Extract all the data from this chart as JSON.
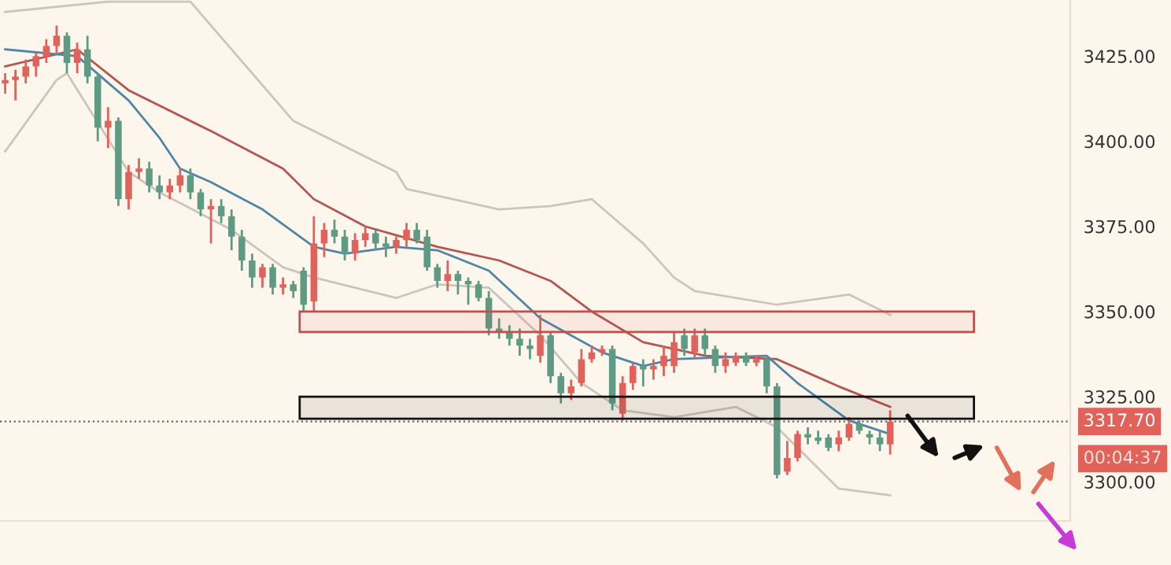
{
  "chart_data": {
    "type": "candlestick",
    "categories": [
      null,
      null,
      null,
      null,
      null,
      null,
      null,
      null,
      null,
      null,
      null,
      null,
      null,
      null,
      null,
      null,
      null,
      null,
      null,
      null,
      null,
      null,
      null,
      null,
      null,
      null,
      null,
      null,
      null,
      null,
      null,
      null,
      null,
      null,
      null,
      null,
      null,
      null,
      null,
      null,
      null,
      null,
      null,
      null,
      null,
      null,
      null,
      null,
      null,
      null,
      null,
      null,
      null,
      null,
      null,
      null,
      null,
      null,
      null,
      null,
      null,
      null,
      null,
      null,
      null,
      null,
      null,
      null,
      null,
      null,
      null,
      null,
      null,
      null,
      null,
      null,
      null,
      null,
      null,
      null,
      null,
      null,
      null,
      null,
      null,
      null,
      null,
      null,
      null,
      null,
      null,
      null,
      null,
      null,
      null,
      null,
      null,
      null,
      null,
      null,
      null,
      null,
      null,
      null
    ],
    "ohlc": [
      [
        3417,
        3420,
        3414,
        3418
      ],
      [
        3418,
        3421,
        3412,
        3419
      ],
      [
        3419,
        3424,
        3417,
        3422
      ],
      [
        3422,
        3426,
        3419,
        3425
      ],
      [
        3425,
        3430,
        3423,
        3428
      ],
      [
        3428,
        3434,
        3426,
        3431
      ],
      [
        3431,
        3432,
        3420,
        3423
      ],
      [
        3423,
        3429,
        3420,
        3427
      ],
      [
        3427,
        3431,
        3417,
        3419
      ],
      [
        3419,
        3420,
        3400,
        3404
      ],
      [
        3404,
        3410,
        3398,
        3406
      ],
      [
        3406,
        3407,
        3381,
        3383
      ],
      [
        3383,
        3393,
        3380,
        3391
      ],
      [
        3391,
        3395,
        3389,
        3392
      ],
      [
        3392,
        3394,
        3385,
        3387
      ],
      [
        3387,
        3390,
        3383,
        3385
      ],
      [
        3385,
        3389,
        3383,
        3387
      ],
      [
        3387,
        3392,
        3385,
        3390
      ],
      [
        3390,
        3392,
        3383,
        3385
      ],
      [
        3385,
        3386,
        3378,
        3380
      ],
      [
        3380,
        3383,
        3370,
        3381
      ],
      [
        3381,
        3383,
        3376,
        3378
      ],
      [
        3378,
        3380,
        3368,
        3372
      ],
      [
        3372,
        3374,
        3362,
        3365
      ],
      [
        3365,
        3367,
        3357,
        3360
      ],
      [
        3360,
        3364,
        3357,
        3363
      ],
      [
        3363,
        3364,
        3355,
        3357
      ],
      [
        3357,
        3360,
        3355,
        3358
      ],
      [
        3358,
        3359,
        3354,
        3356
      ],
      [
        3362,
        3363,
        3350,
        3352
      ],
      [
        3353,
        3378,
        3350,
        3370
      ],
      [
        3370,
        3376,
        3366,
        3374
      ],
      [
        3374,
        3377,
        3370,
        3372
      ],
      [
        3372,
        3374,
        3365,
        3367
      ],
      [
        3367,
        3373,
        3365,
        3371
      ],
      [
        3371,
        3375,
        3369,
        3373
      ],
      [
        3373,
        3374,
        3368,
        3370
      ],
      [
        3370,
        3372,
        3366,
        3369
      ],
      [
        3369,
        3372,
        3367,
        3371
      ],
      [
        3371,
        3376,
        3369,
        3374
      ],
      [
        3374,
        3376,
        3370,
        3371
      ],
      [
        3372,
        3374,
        3362,
        3363
      ],
      [
        3363,
        3364,
        3357,
        3359
      ],
      [
        3359,
        3365,
        3356,
        3361
      ],
      [
        3361,
        3362,
        3355,
        3359
      ],
      [
        3359,
        3360,
        3352,
        3358
      ],
      [
        3358,
        3359,
        3353,
        3354
      ],
      [
        3354,
        3356,
        3343,
        3345
      ],
      [
        3345,
        3348,
        3342,
        3344
      ],
      [
        3344,
        3346,
        3340,
        3342
      ],
      [
        3342,
        3345,
        3337,
        3340
      ],
      [
        3340,
        3342,
        3336,
        3339
      ],
      [
        3337,
        3349,
        3335,
        3343
      ],
      [
        3343,
        3344,
        3329,
        3331
      ],
      [
        3331,
        3332,
        3323,
        3326
      ],
      [
        3326,
        3330,
        3324,
        3328
      ],
      [
        3329,
        3339,
        3328,
        3336
      ],
      [
        3336,
        3340,
        3335,
        3338
      ],
      [
        3338,
        3340,
        3337,
        3339
      ],
      [
        3339,
        3340,
        3321,
        3323
      ],
      [
        3320,
        3331,
        3318,
        3329
      ],
      [
        3329,
        3335,
        3327,
        3334
      ],
      [
        3334,
        3336,
        3328,
        3333
      ],
      [
        3333,
        3336,
        3330,
        3334
      ],
      [
        3334,
        3340,
        3331,
        3337
      ],
      [
        3334,
        3344,
        3332,
        3341
      ],
      [
        3343,
        3345,
        3337,
        3339
      ],
      [
        3338,
        3345,
        3336,
        3343
      ],
      [
        3343,
        3345,
        3337,
        3339
      ],
      [
        3339,
        3340,
        3332,
        3334
      ],
      [
        3334,
        3338,
        3332,
        3336
      ],
      [
        3335,
        3338,
        3334,
        3337
      ],
      [
        3337,
        3338,
        3334,
        3335
      ],
      [
        3335,
        3337,
        3334,
        3336
      ],
      [
        3336,
        3337,
        3326,
        3328
      ],
      [
        3328,
        3329,
        3301,
        3302
      ],
      [
        3303,
        3312,
        3302,
        3307
      ],
      [
        3307,
        3315,
        3306,
        3314
      ],
      [
        3314,
        3316,
        3311,
        3313
      ],
      [
        3313,
        3315,
        3311,
        3312
      ],
      [
        3313,
        3314,
        3309,
        3310
      ],
      [
        3311,
        3315,
        3309,
        3313
      ],
      [
        3313,
        3319,
        3312,
        3317
      ],
      [
        3317,
        3318,
        3314,
        3315
      ],
      [
        3314,
        3315,
        3311,
        3313
      ],
      [
        3313,
        3315,
        3309,
        3311
      ],
      [
        3311,
        3321,
        3308,
        3317.7
      ],
      null,
      null,
      null,
      null,
      null,
      null,
      null,
      null,
      null,
      null,
      null,
      null,
      null,
      null,
      null,
      null,
      null
    ],
    "colors": [
      "#e0625a",
      "#e0625a",
      "#e0625a",
      "#e0625a",
      "#e0625a",
      "#e0625a",
      "#5e9a84",
      "#e0625a",
      "#5e9a84",
      "#5e9a84",
      "#e0625a",
      "#5e9a84",
      "#e0625a",
      "#e0625a",
      "#5e9a84",
      "#5e9a84",
      "#e0625a",
      "#e0625a",
      "#5e9a84",
      "#5e9a84",
      "#e0625a",
      "#5e9a84",
      "#5e9a84",
      "#5e9a84",
      "#5e9a84",
      "#e0625a",
      "#5e9a84",
      "#e0625a",
      "#5e9a84",
      "#5e9a84",
      "#e0625a",
      "#e0625a",
      "#5e9a84",
      "#5e9a84",
      "#e0625a",
      "#e0625a",
      "#5e9a84",
      "#5e9a84",
      "#e0625a",
      "#e0625a",
      "#5e9a84",
      "#5e9a84",
      "#5e9a84",
      "#e0625a",
      "#5e9a84",
      "#5e9a84",
      "#5e9a84",
      "#5e9a84",
      "#5e9a84",
      "#5e9a84",
      "#5e9a84",
      "#5e9a84",
      "#e0625a",
      "#5e9a84",
      "#5e9a84",
      "#e0625a",
      "#e0625a",
      "#e0625a",
      "#e0625a",
      "#5e9a84",
      "#e0625a",
      "#e0625a",
      "#5e9a84",
      "#e0625a",
      "#e0625a",
      "#e0625a",
      "#5e9a84",
      "#e0625a",
      "#5e9a84",
      "#5e9a84",
      "#e0625a",
      "#e0625a",
      "#5e9a84",
      "#e0625a",
      "#5e9a84",
      "#5e9a84",
      "#e0625a",
      "#e0625a",
      "#5e9a84",
      "#5e9a84",
      "#5e9a84",
      "#e0625a",
      "#e0625a",
      "#5e9a84",
      "#5e9a84",
      "#5e9a84",
      "#e0625a",
      null,
      null,
      null,
      null,
      null,
      null,
      null,
      null,
      null,
      null,
      null,
      null,
      null,
      null,
      null,
      null,
      null
    ],
    "series": [
      {
        "type": "line",
        "color": "#b5554f",
        "values": [
          3422,
          null,
          null,
          null,
          null,
          null,
          null,
          3427,
          null,
          null,
          null,
          null,
          3415,
          null,
          null,
          null,
          null,
          null,
          null,
          null,
          3403,
          null,
          null,
          null,
          null,
          null,
          null,
          3392,
          null,
          null,
          3383,
          null,
          null,
          null,
          null,
          3375,
          null,
          null,
          null,
          null,
          null,
          null,
          3369,
          null,
          null,
          null,
          null,
          null,
          3365,
          null,
          null,
          null,
          null,
          3359,
          null,
          null,
          null,
          3350,
          null,
          null,
          null,
          null,
          3341,
          null,
          null,
          null,
          null,
          null,
          3337,
          null,
          null,
          null,
          null,
          null,
          null,
          3336,
          null,
          null,
          null,
          null,
          null,
          3328,
          null,
          null,
          null,
          null,
          3322,
          null,
          null,
          null,
          null,
          null,
          null,
          null,
          null,
          null,
          null,
          null,
          null,
          null,
          null,
          null,
          null,
          null
        ]
      },
      {
        "type": "line",
        "color": "#4f86a8",
        "values": [
          3427,
          null,
          null,
          null,
          null,
          null,
          null,
          3425,
          null,
          null,
          null,
          null,
          3412,
          null,
          null,
          3401,
          null,
          3392,
          null,
          null,
          3388,
          null,
          null,
          null,
          null,
          3380,
          null,
          null,
          null,
          null,
          3369,
          null,
          null,
          3367,
          null,
          null,
          null,
          null,
          3369,
          null,
          null,
          null,
          3368,
          null,
          null,
          null,
          null,
          3362,
          null,
          null,
          null,
          null,
          3348,
          null,
          null,
          3343,
          null,
          null,
          3338,
          null,
          null,
          null,
          3334,
          null,
          null,
          3336,
          null,
          null,
          null,
          null,
          null,
          null,
          null,
          null,
          3337,
          null,
          null,
          3329,
          null,
          null,
          null,
          null,
          3318,
          null,
          null,
          null,
          3314,
          null,
          null,
          null,
          null,
          null,
          null,
          null,
          null,
          null,
          null,
          null,
          null,
          null,
          null,
          null,
          null,
          null
        ]
      },
      {
        "type": "line",
        "color": "#cbc5bc",
        "values": [
          3438,
          null,
          null,
          null,
          null,
          null,
          null,
          null,
          null,
          null,
          3441,
          null,
          null,
          null,
          null,
          null,
          null,
          null,
          3441,
          null,
          null,
          null,
          null,
          null,
          null,
          null,
          null,
          null,
          3406,
          null,
          3403,
          null,
          null,
          null,
          null,
          null,
          null,
          null,
          3391,
          3386,
          null,
          null,
          null,
          null,
          null,
          null,
          null,
          null,
          3380,
          null,
          null,
          null,
          null,
          3381,
          null,
          null,
          null,
          3383,
          null,
          null,
          null,
          null,
          3370,
          null,
          null,
          3360,
          null,
          3356,
          null,
          null,
          null,
          null,
          null,
          null,
          null,
          3352,
          null,
          null,
          null,
          null,
          null,
          null,
          3355,
          null,
          null,
          null,
          3349,
          null,
          null,
          null,
          null,
          null,
          null,
          null,
          null,
          null,
          null,
          null,
          null,
          null,
          null,
          null,
          null,
          null
        ]
      },
      {
        "type": "line",
        "color": "#cbc5bc",
        "values": [
          3397,
          null,
          null,
          null,
          null,
          3418,
          3420,
          null,
          null,
          null,
          null,
          null,
          3391,
          null,
          null,
          3385,
          null,
          null,
          null,
          null,
          null,
          null,
          3374,
          null,
          null,
          null,
          null,
          3363,
          null,
          null,
          3360,
          null,
          null,
          null,
          null,
          null,
          null,
          null,
          3354,
          null,
          null,
          null,
          3358,
          null,
          null,
          null,
          null,
          3357,
          null,
          null,
          null,
          null,
          3343,
          null,
          null,
          null,
          3329,
          null,
          null,
          null,
          3321,
          null,
          null,
          null,
          null,
          3319,
          null,
          null,
          null,
          null,
          null,
          3322,
          null,
          null,
          null,
          3316,
          null,
          null,
          null,
          null,
          null,
          3298,
          null,
          null,
          null,
          null,
          3296,
          null,
          null,
          null,
          null,
          null,
          null,
          null,
          null,
          null,
          null,
          null,
          null,
          null,
          null,
          null,
          null,
          null
        ]
      }
    ],
    "ylim": [
      3288.5,
      3441.5
    ],
    "yticks": [
      {
        "value": 3300,
        "label": "3300.00"
      },
      {
        "value": 3325,
        "label": "3325.00"
      },
      {
        "value": 3350,
        "label": "3350.00"
      },
      {
        "value": 3375,
        "label": "3375.00"
      },
      {
        "value": 3400,
        "label": "3400.00"
      },
      {
        "value": 3425,
        "label": "3425.00"
      }
    ],
    "ref_lines": [
      {
        "axis": "y",
        "value": 3317.7,
        "label": "3317.70",
        "color": "#666666",
        "line_style": "dotted"
      }
    ],
    "bands": [
      {
        "axis": "y",
        "from": 3344,
        "to": 3350,
        "color": "#c0504d"
      },
      {
        "axis": "y",
        "from": 3318.5,
        "to": 3325,
        "color": "#111111"
      }
    ],
    "annotations": [
      "00:04:37"
    ],
    "tick_labels": "y",
    "grid": false,
    "legend": false
  }
}
